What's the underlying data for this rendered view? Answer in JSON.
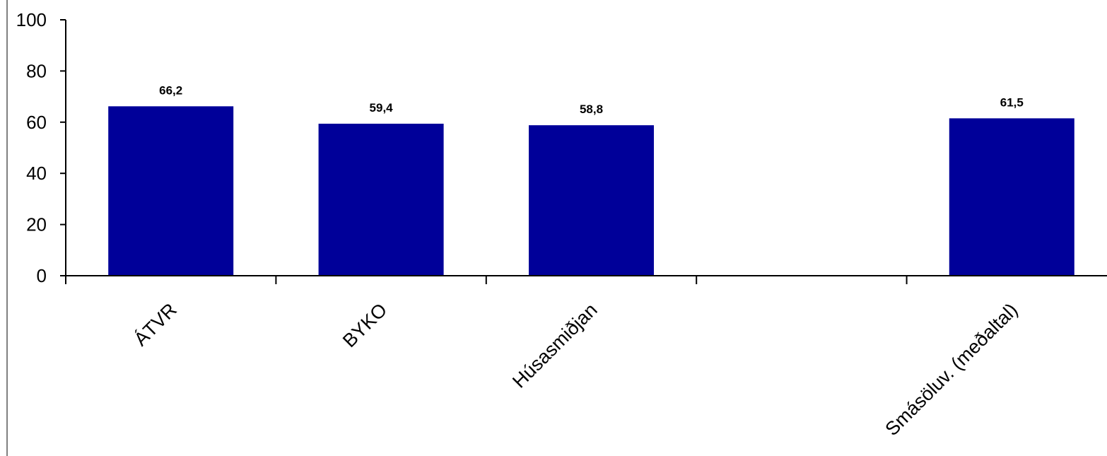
{
  "chart_data": {
    "type": "bar",
    "categories": [
      "ÁTVR",
      "BYKO",
      "Húsasmiðjan",
      "",
      "Smásöluv. (meðaltal)"
    ],
    "values": [
      66.2,
      59.4,
      58.8,
      null,
      61.5
    ],
    "data_labels": [
      "66,2",
      "59,4",
      "58,8",
      "",
      "61,5"
    ],
    "yticks": [
      "0",
      "20",
      "40",
      "60",
      "80",
      "100"
    ],
    "ylim": [
      0,
      100
    ],
    "title": "",
    "xlabel": "",
    "ylabel": "",
    "grid": false,
    "legend": "none",
    "colors": {
      "bar": "#000099",
      "axis": "#000000",
      "border": "#808080"
    }
  }
}
